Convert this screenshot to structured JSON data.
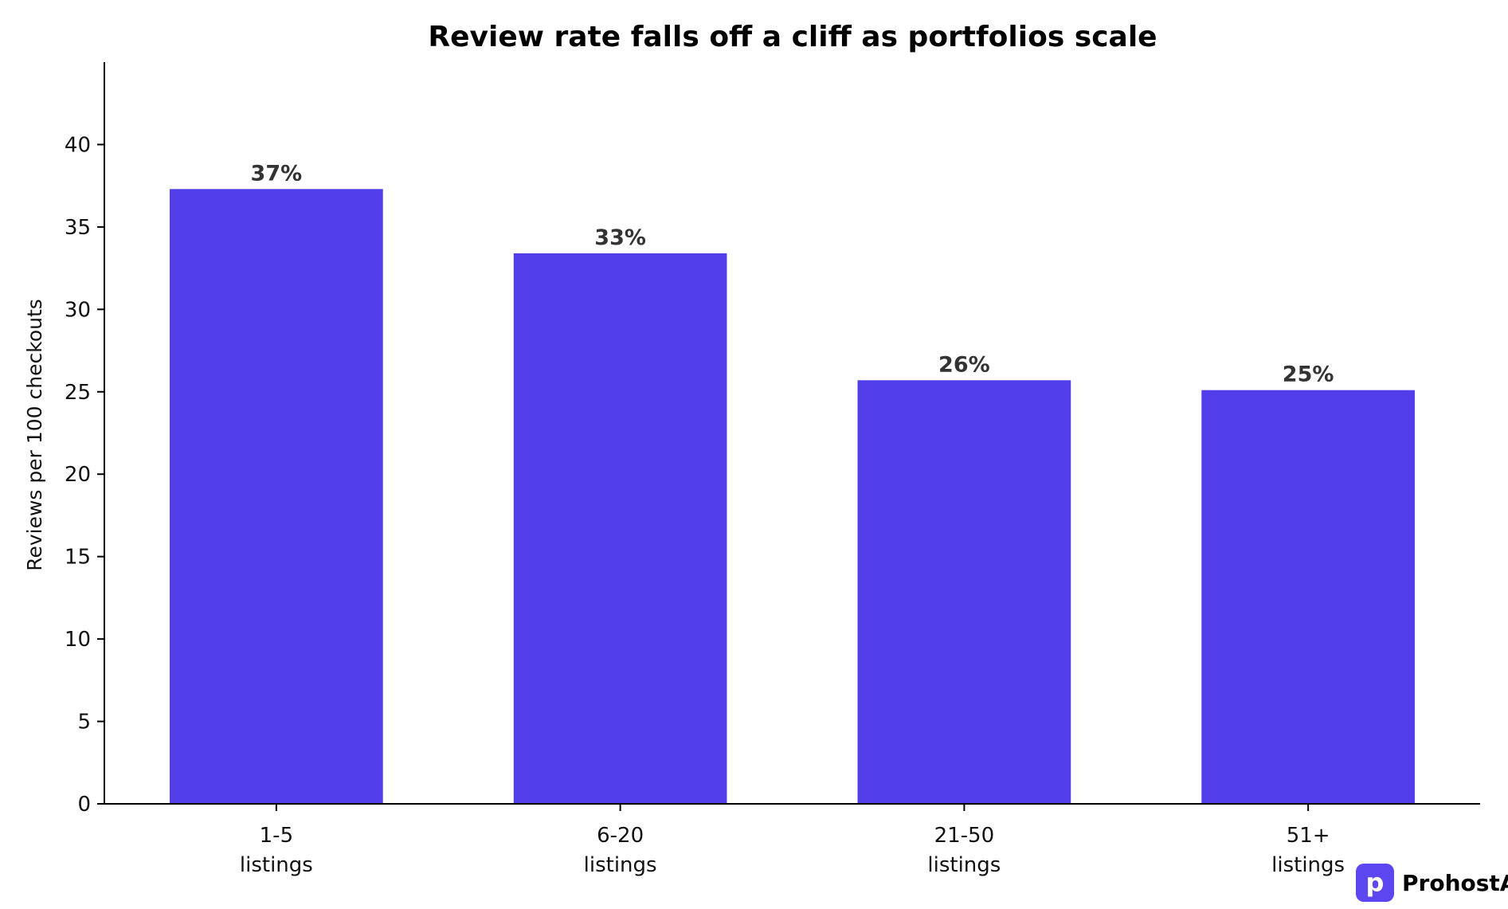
{
  "chart_data": {
    "type": "bar",
    "title": "Review rate falls off a cliff as portfolios scale",
    "xlabel": "",
    "ylabel": "Reviews per 100 checkouts",
    "categories": [
      [
        "1-5",
        "listings"
      ],
      [
        "6-20",
        "listings"
      ],
      [
        "21-50",
        "listings"
      ],
      [
        "51+",
        "listings"
      ]
    ],
    "values": [
      37.3,
      33.4,
      25.7,
      25.1
    ],
    "data_labels": [
      "37%",
      "33%",
      "26%",
      "25%"
    ],
    "ylim": [
      0,
      45
    ],
    "yticks": [
      0,
      5,
      10,
      15,
      20,
      25,
      30,
      35,
      40
    ],
    "grid": false,
    "bar_color": "#513ee9",
    "legend": "none"
  },
  "brand": {
    "logo_letter": "p",
    "name": "ProhostAI",
    "logo_color": "#5b46f0"
  }
}
